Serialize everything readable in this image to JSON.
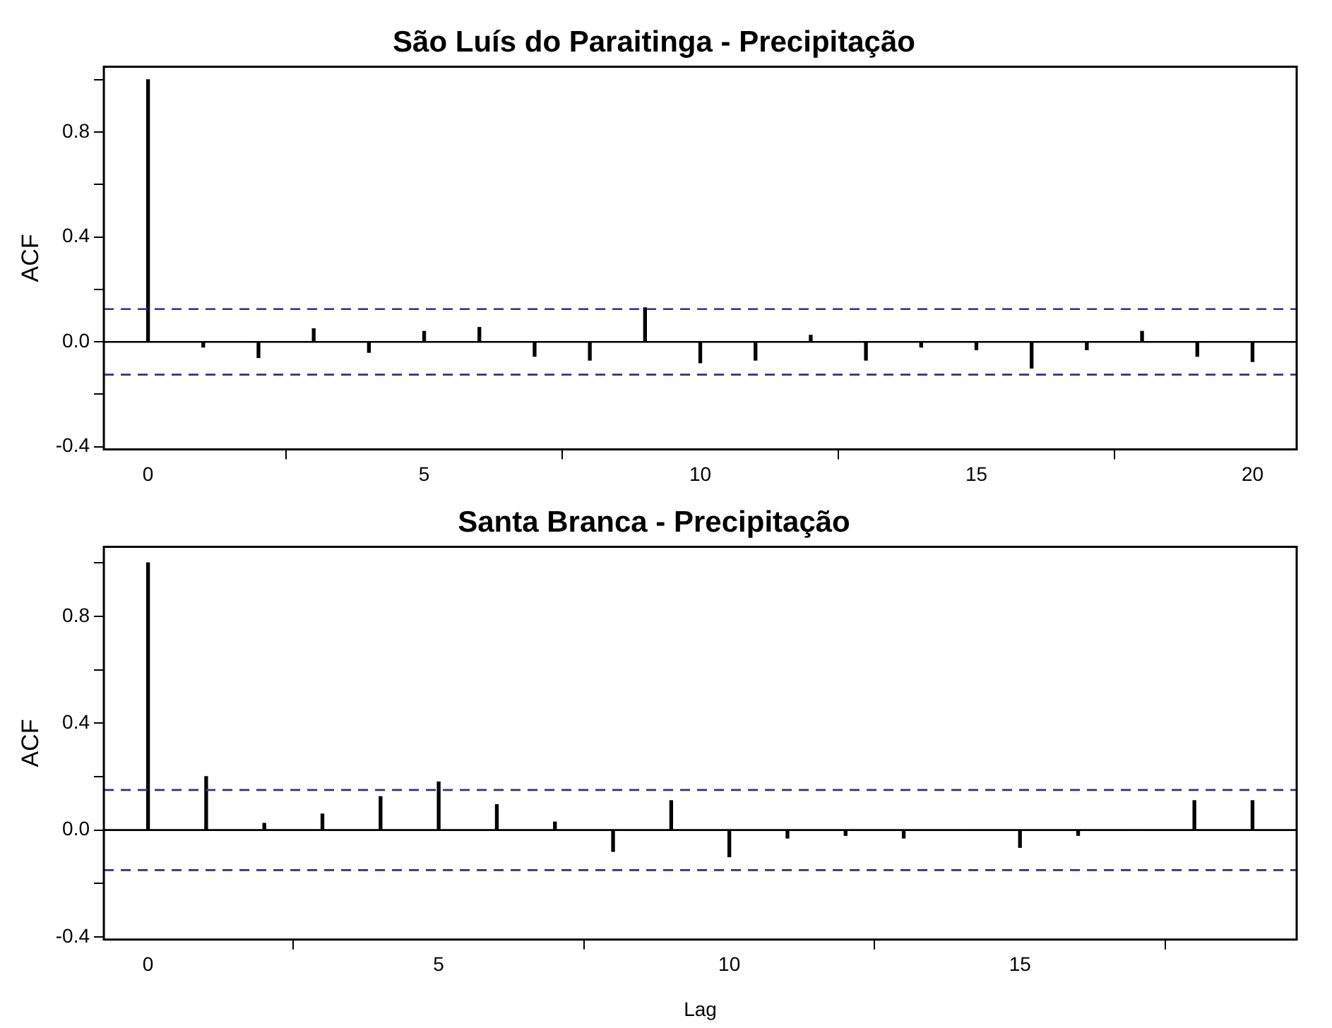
{
  "chart_data": [
    {
      "type": "bar",
      "title": "São Luís do Paraitinga - Precipitação",
      "ylabel": "ACF",
      "x": [
        0,
        1,
        2,
        3,
        4,
        5,
        6,
        7,
        8,
        9,
        10,
        11,
        12,
        13,
        14,
        15,
        16,
        17,
        18,
        19,
        20
      ],
      "values": [
        1.0,
        -0.02,
        -0.06,
        0.05,
        -0.04,
        0.04,
        0.055,
        -0.055,
        -0.07,
        0.13,
        -0.08,
        -0.07,
        0.025,
        -0.07,
        -0.02,
        -0.03,
        -0.1,
        -0.03,
        0.04,
        -0.055,
        -0.075
      ],
      "color": "#000000",
      "xlim": [
        -0.8,
        20.8
      ],
      "xticks": [
        0,
        5,
        10,
        15,
        20
      ],
      "ylim": [
        -0.41,
        1.05
      ],
      "yticks": [
        -0.4,
        {
          "value": -0.2,
          "label": null
        },
        {
          "value": 0,
          "label": "0.0"
        },
        {
          "value": 0.2,
          "label": null
        },
        0.4,
        {
          "value": 0.6,
          "label": null
        },
        0.8,
        {
          "value": 1.0,
          "label": null
        }
      ],
      "ref_lines": [
        {
          "axis": "y",
          "value": 0.125,
          "color": "#2f2f8f",
          "line_style": "dashed"
        },
        {
          "axis": "y",
          "value": -0.125,
          "color": "#2f2f8f",
          "line_style": "dashed"
        },
        {
          "axis": "y",
          "value": 0,
          "color": "#000000",
          "line_style": "solid"
        }
      ],
      "grid": false,
      "legend": false
    },
    {
      "type": "bar",
      "title": "Santa Branca - Precipitação",
      "xlabel": "Lag",
      "ylabel": "ACF",
      "x": [
        0,
        1,
        2,
        3,
        4,
        5,
        6,
        7,
        8,
        9,
        10,
        11,
        12,
        13,
        14,
        15,
        16,
        17,
        18,
        19
      ],
      "values": [
        1.0,
        0.2,
        0.025,
        0.06,
        0.125,
        0.18,
        0.095,
        0.03,
        -0.08,
        0.11,
        -0.1,
        -0.03,
        -0.02,
        -0.03,
        0,
        -0.065,
        -0.02,
        0,
        0.11,
        0.11
      ],
      "color": "#000000",
      "xlim": [
        -0.76,
        19.76
      ],
      "xticks": [
        0,
        5,
        10,
        15
      ],
      "ylim": [
        -0.41,
        1.06
      ],
      "yticks": [
        -0.4,
        {
          "value": -0.2,
          "label": null
        },
        {
          "value": 0,
          "label": "0.0"
        },
        {
          "value": 0.2,
          "label": null
        },
        0.4,
        {
          "value": 0.6,
          "label": null
        },
        0.8,
        {
          "value": 1.0,
          "label": null
        }
      ],
      "ref_lines": [
        {
          "axis": "y",
          "value": 0.15,
          "color": "#2f2f8f",
          "line_style": "dashed"
        },
        {
          "axis": "y",
          "value": -0.15,
          "color": "#2f2f8f",
          "line_style": "dashed"
        },
        {
          "axis": "y",
          "value": 0,
          "color": "#000000",
          "line_style": "solid"
        }
      ],
      "grid": false,
      "legend": false
    }
  ]
}
